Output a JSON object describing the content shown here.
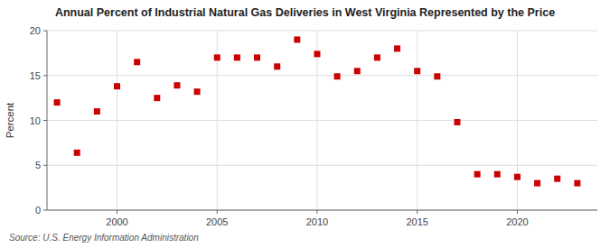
{
  "chart_data": {
    "type": "scatter",
    "title": "Annual Percent of Industrial Natural Gas Deliveries in West Virginia Represented by the Price",
    "ylabel": "Percent",
    "annotations": [
      "Source: U.S. Energy Information Administration"
    ],
    "x": [
      1997,
      1998,
      1999,
      2000,
      2001,
      2002,
      2003,
      2004,
      2005,
      2006,
      2007,
      2008,
      2009,
      2010,
      2011,
      2012,
      2013,
      2014,
      2015,
      2016,
      2017,
      2018,
      2019,
      2020,
      2021,
      2022,
      2023
    ],
    "values": [
      12.0,
      6.4,
      11.0,
      13.8,
      16.5,
      12.5,
      13.9,
      13.2,
      17.0,
      17.0,
      17.0,
      16.0,
      19.0,
      17.4,
      14.9,
      15.5,
      17.0,
      18.0,
      15.5,
      14.9,
      9.8,
      4.0,
      4.0,
      3.7,
      3.0,
      3.5,
      3.0
    ],
    "color": "#cc0000",
    "marker": "square",
    "xlim": [
      1996.5,
      2024
    ],
    "ylim": [
      0,
      20
    ],
    "xticks": [
      2000,
      2005,
      2010,
      2015,
      2020
    ],
    "yticks": [
      0,
      5,
      10,
      15,
      20
    ],
    "grid": true
  }
}
